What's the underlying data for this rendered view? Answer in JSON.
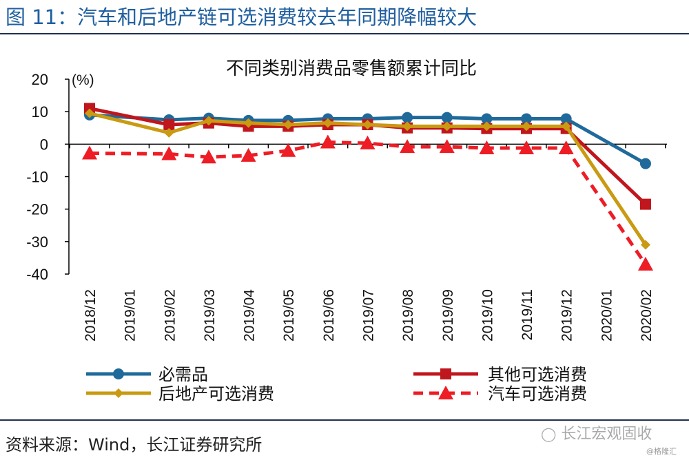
{
  "figure_title": "图 11：汽车和后地产链可选消费较去年同期降幅较大",
  "source_text": "资料来源：Wind，长江证券研究所",
  "watermark_text": "长江宏观固收",
  "watermark_small": "@格隆汇",
  "colors": {
    "title_blue": "#1f5f9f",
    "necessities": "#1f6a9a",
    "other_discretionary": "#c0161d",
    "real_estate_chain": "#c99a12",
    "auto": "#ee1c25"
  },
  "chart_data": {
    "type": "line",
    "title": "不同类别消费品零售额累计同比",
    "ylabel": "(%)",
    "ylim": [
      -40,
      20
    ],
    "yticks": [
      20,
      10,
      0,
      -10,
      -20,
      -30,
      -40
    ],
    "categories": [
      "2018/12",
      "2019/01",
      "2019/02",
      "2019/03",
      "2019/04",
      "2019/05",
      "2019/06",
      "2019/07",
      "2019/08",
      "2019/09",
      "2019/10",
      "2019/11",
      "2019/12",
      "2020/01",
      "2020/02"
    ],
    "series": [
      {
        "name": "必需品",
        "color": "#1f6a9a",
        "marker": "circle",
        "dash": false,
        "values": [
          9,
          null,
          7.5,
          8,
          7.3,
          7.3,
          7.8,
          7.8,
          8.2,
          8.2,
          7.8,
          7.8,
          7.8,
          null,
          -6
        ]
      },
      {
        "name": "其他可选消费",
        "color": "#c0161d",
        "marker": "square",
        "dash": false,
        "values": [
          11,
          null,
          6,
          6.5,
          5.5,
          5.5,
          6,
          6,
          5,
          5,
          4.8,
          4.8,
          4.8,
          null,
          -18.5
        ]
      },
      {
        "name": "后地产可选消费",
        "color": "#c99a12",
        "marker": "diamond",
        "dash": false,
        "values": [
          9.5,
          null,
          3.5,
          7.2,
          6.5,
          6,
          6.5,
          6,
          5.5,
          5.5,
          5.5,
          5.5,
          5.5,
          null,
          -31
        ]
      },
      {
        "name": "汽车可选消费",
        "color": "#ee1c25",
        "marker": "triangle",
        "dash": true,
        "values": [
          -2.8,
          null,
          -3,
          -4,
          -3.5,
          -2,
          0.6,
          0.3,
          -0.8,
          -0.8,
          -1.2,
          -1.2,
          -1.2,
          null,
          -37
        ]
      }
    ],
    "legend_position": "bottom"
  }
}
